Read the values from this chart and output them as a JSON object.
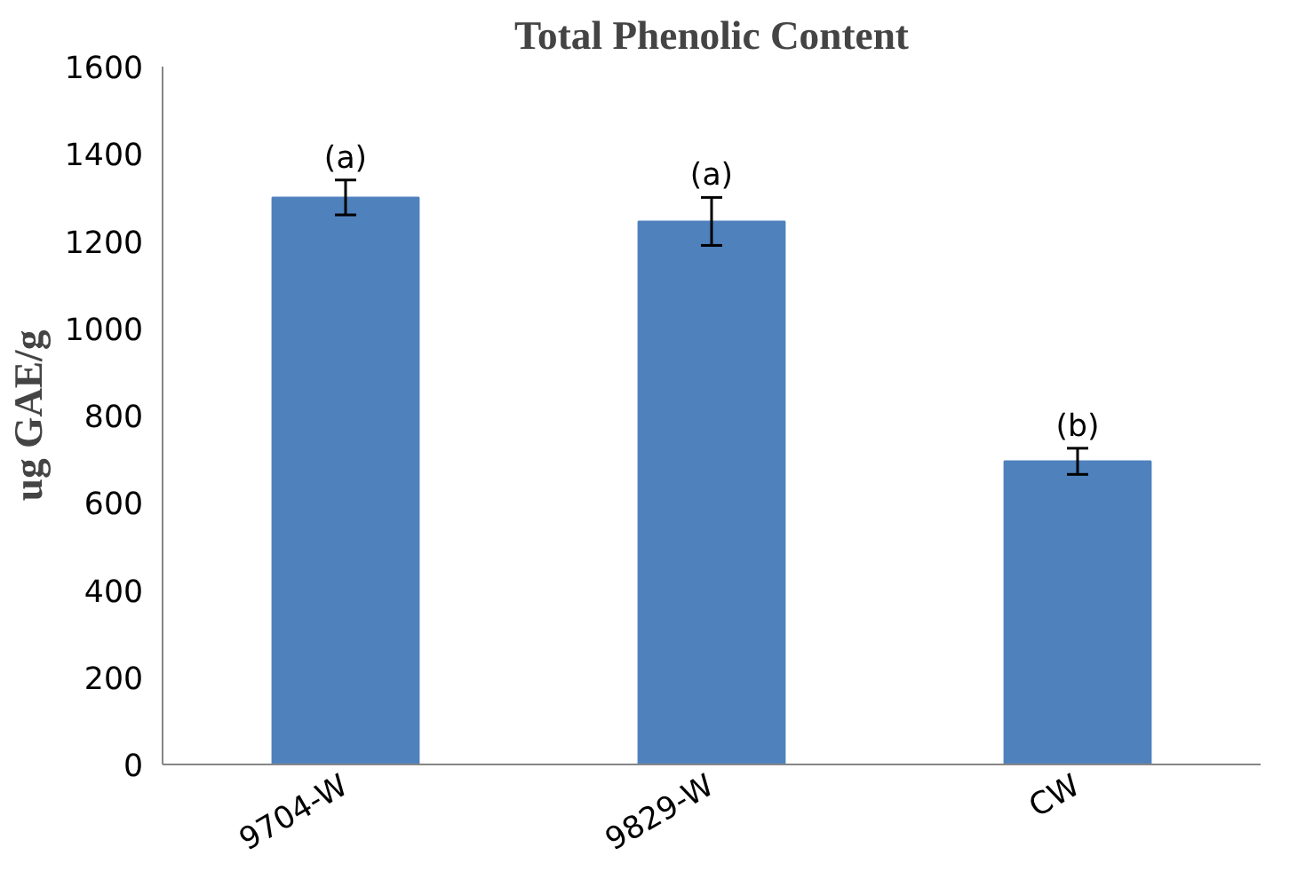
{
  "chart_data": {
    "type": "bar",
    "title": "Total Phenolic Content",
    "ylabel": "ug GAE/g",
    "categories": [
      "9704-W",
      "9829-W",
      "CW"
    ],
    "values": [
      1300,
      1245,
      695
    ],
    "errors": [
      40,
      55,
      30
    ],
    "color": "#4f81bd",
    "ylim": [
      0,
      1600
    ],
    "yticks": [
      0,
      200,
      400,
      600,
      800,
      1000,
      1200,
      1400,
      1600
    ],
    "grid": false,
    "annotations": [
      {
        "text": "(a)",
        "x": "9704-W",
        "y": 1340
      },
      {
        "text": "(a)",
        "x": "9829-W",
        "y": 1300
      },
      {
        "text": "(b)",
        "x": "CW",
        "y": 725
      }
    ]
  }
}
